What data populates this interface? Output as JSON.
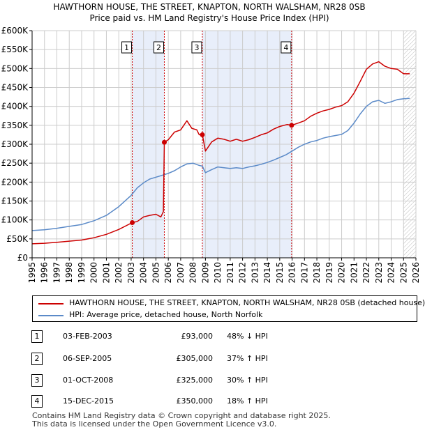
{
  "title": {
    "line1": "HAWTHORN HOUSE, THE STREET, KNAPTON, NORTH WALSHAM, NR28 0SB",
    "line2": "Price paid vs. HM Land Registry's House Price Index (HPI)"
  },
  "colors": {
    "price": "#cc0000",
    "hpi": "#5b8ac8",
    "shade": "#e8eefa",
    "vline": "#cc0000",
    "grid": "#cccccc"
  },
  "chart_data": {
    "type": "line",
    "title": "Price paid vs. HM Land Registry's House Price Index (HPI)",
    "xlabel": "",
    "ylabel": "",
    "xlim": [
      1995,
      2026
    ],
    "ylim": [
      0,
      600000
    ],
    "grid": true,
    "y_ticks": [
      {
        "value": 0,
        "label": "£0"
      },
      {
        "value": 50000,
        "label": "£50K"
      },
      {
        "value": 100000,
        "label": "£100K"
      },
      {
        "value": 150000,
        "label": "£150K"
      },
      {
        "value": 200000,
        "label": "£200K"
      },
      {
        "value": 250000,
        "label": "£250K"
      },
      {
        "value": 300000,
        "label": "£300K"
      },
      {
        "value": 350000,
        "label": "£350K"
      },
      {
        "value": 400000,
        "label": "£400K"
      },
      {
        "value": 450000,
        "label": "£450K"
      },
      {
        "value": 500000,
        "label": "£500K"
      },
      {
        "value": 550000,
        "label": "£550K"
      },
      {
        "value": 600000,
        "label": "£600K"
      }
    ],
    "x_ticks": [
      "1995",
      "1996",
      "1997",
      "1998",
      "1999",
      "2000",
      "2001",
      "2002",
      "2003",
      "2004",
      "2005",
      "2006",
      "2007",
      "2008",
      "2009",
      "2010",
      "2011",
      "2012",
      "2013",
      "2014",
      "2015",
      "2016",
      "2017",
      "2018",
      "2019",
      "2020",
      "2021",
      "2022",
      "2023",
      "2024",
      "2025",
      "2026"
    ],
    "shaded_ranges": [
      [
        2003.09,
        2005.68
      ],
      [
        2008.75,
        2015.96
      ]
    ],
    "hatched_range": [
      2025.0,
      2026.0
    ],
    "series": [
      {
        "name": "HAWTHORN HOUSE, THE STREET, KNAPTON, NORTH WALSHAM, NR28 0SB (detached house)",
        "x": [
          1995.0,
          1996.0,
          1997.0,
          1998.0,
          1999.0,
          2000.0,
          2001.0,
          2002.0,
          2003.09,
          2003.5,
          2004.0,
          2004.5,
          2005.0,
          2005.4,
          2005.6,
          2005.68,
          2006.0,
          2006.5,
          2007.0,
          2007.5,
          2007.9,
          2008.3,
          2008.5,
          2008.75,
          2009.0,
          2009.5,
          2010.0,
          2010.5,
          2011.0,
          2011.5,
          2012.0,
          2012.5,
          2013.0,
          2013.5,
          2014.0,
          2014.5,
          2015.0,
          2015.6,
          2015.96,
          2016.5,
          2017.0,
          2017.5,
          2018.0,
          2018.5,
          2019.0,
          2019.5,
          2020.0,
          2020.5,
          2021.0,
          2021.5,
          2022.0,
          2022.5,
          2023.0,
          2023.5,
          2024.0,
          2024.5,
          2025.0,
          2025.5
        ],
        "values": [
          37000,
          38500,
          41000,
          44000,
          47000,
          53000,
          62000,
          75000,
          93000,
          96000,
          108000,
          112000,
          115000,
          108000,
          122000,
          305000,
          312000,
          332000,
          338000,
          362000,
          342000,
          338000,
          325000,
          325000,
          282000,
          306000,
          316000,
          313000,
          308000,
          313000,
          308000,
          312000,
          318000,
          325000,
          330000,
          340000,
          347000,
          352000,
          350000,
          356000,
          362000,
          374000,
          382000,
          388000,
          392000,
          398000,
          402000,
          412000,
          435000,
          466000,
          498000,
          512000,
          518000,
          506000,
          500000,
          498000,
          486000,
          486000
        ]
      },
      {
        "name": "HPI: Average price, detached house, North Norfolk",
        "x": [
          1995.0,
          1996.0,
          1997.0,
          1998.0,
          1999.0,
          2000.0,
          2001.0,
          2002.0,
          2003.0,
          2003.5,
          2004.0,
          2004.5,
          2005.0,
          2005.5,
          2006.0,
          2006.5,
          2007.0,
          2007.5,
          2008.0,
          2008.5,
          2008.75,
          2009.0,
          2009.5,
          2010.0,
          2010.5,
          2011.0,
          2011.5,
          2012.0,
          2012.5,
          2013.0,
          2013.5,
          2014.0,
          2014.5,
          2015.0,
          2015.5,
          2016.0,
          2016.5,
          2017.0,
          2017.5,
          2018.0,
          2018.5,
          2019.0,
          2019.5,
          2020.0,
          2020.5,
          2021.0,
          2021.5,
          2022.0,
          2022.5,
          2023.0,
          2023.5,
          2024.0,
          2024.5,
          2025.0,
          2025.5
        ],
        "values": [
          72000,
          74000,
          78000,
          83000,
          88000,
          98000,
          112000,
          135000,
          165000,
          185000,
          198000,
          208000,
          213000,
          218000,
          223000,
          230000,
          240000,
          248000,
          250000,
          244000,
          242000,
          225000,
          233000,
          240000,
          238000,
          236000,
          238000,
          236000,
          240000,
          243000,
          247000,
          252000,
          258000,
          265000,
          272000,
          282000,
          292000,
          300000,
          306000,
          310000,
          316000,
          320000,
          323000,
          326000,
          336000,
          356000,
          380000,
          400000,
          412000,
          416000,
          408000,
          412000,
          418000,
          420000,
          421000
        ]
      }
    ],
    "markers": [
      {
        "label": "1",
        "x": 2003.09,
        "y": 93000
      },
      {
        "label": "2",
        "x": 2005.68,
        "y": 305000
      },
      {
        "label": "3",
        "x": 2008.75,
        "y": 325000
      },
      {
        "label": "4",
        "x": 2015.96,
        "y": 350000
      }
    ]
  },
  "legend": {
    "price_label": "HAWTHORN HOUSE, THE STREET, KNAPTON, NORTH WALSHAM, NR28 0SB (detached house)",
    "hpi_label": "HPI: Average price, detached house, North Norfolk"
  },
  "transactions": [
    {
      "num": "1",
      "date": "03-FEB-2003",
      "price": "£93,000",
      "hpi": "48% ↓ HPI"
    },
    {
      "num": "2",
      "date": "06-SEP-2005",
      "price": "£305,000",
      "hpi": "37% ↑ HPI"
    },
    {
      "num": "3",
      "date": "01-OCT-2008",
      "price": "£325,000",
      "hpi": "30% ↑ HPI"
    },
    {
      "num": "4",
      "date": "15-DEC-2015",
      "price": "£350,000",
      "hpi": "18% ↑ HPI"
    }
  ],
  "footer": {
    "line1": "Contains HM Land Registry data © Crown copyright and database right 2025.",
    "line2": "This data is licensed under the Open Government Licence v3.0."
  }
}
